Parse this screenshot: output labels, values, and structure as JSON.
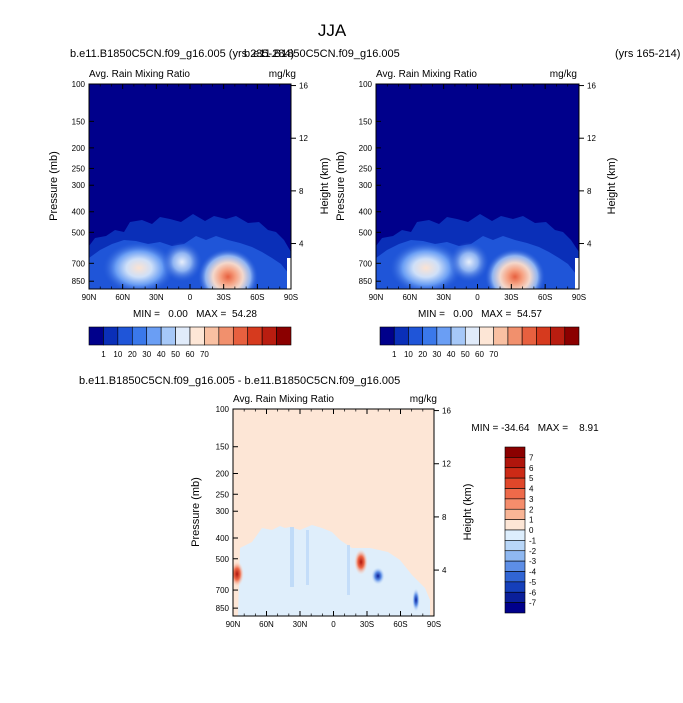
{
  "page": {
    "title": "JJA",
    "top_left_case": "b.e11.B1850C5CN.f09_g16.005 (yrs 235-284)",
    "top_right_case": "b.e11.B1850C5CN.f09_g16.005",
    "top_right_years": "(yrs 165-214)",
    "diff_title": "b.e11.B1850C5CN.f09_g16.005 - b.e11.B1850C5CN.f09_g16.005"
  },
  "chart_data": [
    {
      "type": "heatmap",
      "name": "left",
      "title": "Avg. Rain Mixing Ratio",
      "units": "mg/kg",
      "xlabel": "",
      "ylabel": "Pressure (mb)",
      "ylabel_right": "Height (km)",
      "xticks": [
        "90N",
        "60N",
        "30N",
        "0",
        "30S",
        "60S",
        "90S"
      ],
      "yticks": [
        "100",
        "150",
        "200",
        "250",
        "300",
        "400",
        "500",
        "700",
        "850"
      ],
      "yticks_right": [
        "16",
        "12",
        "8",
        "4"
      ],
      "ylim": [
        100,
        925
      ],
      "stats": "MIN =   0.00   MAX =  54.28",
      "colorbar_labels": [
        "1",
        "10",
        "20",
        "30",
        "40",
        "50",
        "60",
        "70"
      ],
      "colorbar_colors": [
        "#00008b",
        "#0a2fb8",
        "#1f55d8",
        "#3a78ea",
        "#6a9ef4",
        "#a6c8f8",
        "#e0ebfa",
        "#fde6d6",
        "#f9c0a2",
        "#f1906d",
        "#e7603f",
        "#d63a1e",
        "#b91d10",
        "#8b0000"
      ],
      "features": [
        {
          "lat": 55,
          "p": 700,
          "peak": 30
        },
        {
          "lat": 10,
          "p": 700,
          "peak": 16
        },
        {
          "lat": -35,
          "p": 790,
          "peak": 54.28
        }
      ]
    },
    {
      "type": "heatmap",
      "name": "right",
      "title": "Avg. Rain Mixing Ratio",
      "units": "mg/kg",
      "xlabel": "",
      "ylabel": "Pressure (mb)",
      "ylabel_right": "Height (km)",
      "xticks": [
        "90N",
        "60N",
        "30N",
        "0",
        "30S",
        "60S",
        "90S"
      ],
      "yticks": [
        "100",
        "150",
        "200",
        "250",
        "300",
        "400",
        "500",
        "700",
        "850"
      ],
      "yticks_right": [
        "16",
        "12",
        "8",
        "4"
      ],
      "ylim": [
        100,
        925
      ],
      "stats": "MIN =   0.00   MAX =  54.57",
      "colorbar_labels": [
        "1",
        "10",
        "20",
        "30",
        "40",
        "50",
        "60",
        "70"
      ],
      "colorbar_colors": [
        "#00008b",
        "#0a2fb8",
        "#1f55d8",
        "#3a78ea",
        "#6a9ef4",
        "#a6c8f8",
        "#e0ebfa",
        "#fde6d6",
        "#f9c0a2",
        "#f1906d",
        "#e7603f",
        "#d63a1e",
        "#b91d10",
        "#8b0000"
      ],
      "features": [
        {
          "lat": 55,
          "p": 700,
          "peak": 30
        },
        {
          "lat": 10,
          "p": 700,
          "peak": 16
        },
        {
          "lat": -35,
          "p": 790,
          "peak": 54.57
        }
      ]
    },
    {
      "type": "heatmap",
      "name": "diff",
      "title": "Avg. Rain Mixing Ratio",
      "units": "mg/kg",
      "xlabel": "",
      "ylabel": "Pressure (mb)",
      "ylabel_right": "Height (km)",
      "xticks": [
        "90N",
        "60N",
        "30N",
        "0",
        "30S",
        "60S",
        "90S"
      ],
      "yticks": [
        "100",
        "150",
        "200",
        "250",
        "300",
        "400",
        "500",
        "700",
        "850"
      ],
      "yticks_right": [
        "16",
        "12",
        "8",
        "4"
      ],
      "ylim": [
        100,
        925
      ],
      "stats": "MIN = -34.64   MAX =    8.91",
      "colorbar_labels": [
        "7",
        "6",
        "5",
        "4",
        "3",
        "2",
        "1",
        "0",
        "-1",
        "-2",
        "-3",
        "-4",
        "-5",
        "-6",
        "-7"
      ],
      "colorbar_colors": [
        "#8b0000",
        "#b0150c",
        "#cc2a16",
        "#e0472a",
        "#ee6a4a",
        "#f58d6c",
        "#f9b596",
        "#fde6d6",
        "#ddeefd",
        "#b8d6f8",
        "#8fb8f1",
        "#5d8ee6",
        "#3165d4",
        "#153fba",
        "#0a1f9a",
        "#00008b"
      ],
      "features": [
        {
          "lat": 88,
          "p": 650,
          "sign": "positive"
        },
        {
          "lat": 3,
          "p": 620,
          "sign": "positive"
        },
        {
          "lat": -8,
          "p": 650,
          "sign": "negative"
        },
        {
          "lat": -78,
          "p": 850,
          "sign": "negative"
        }
      ]
    }
  ]
}
